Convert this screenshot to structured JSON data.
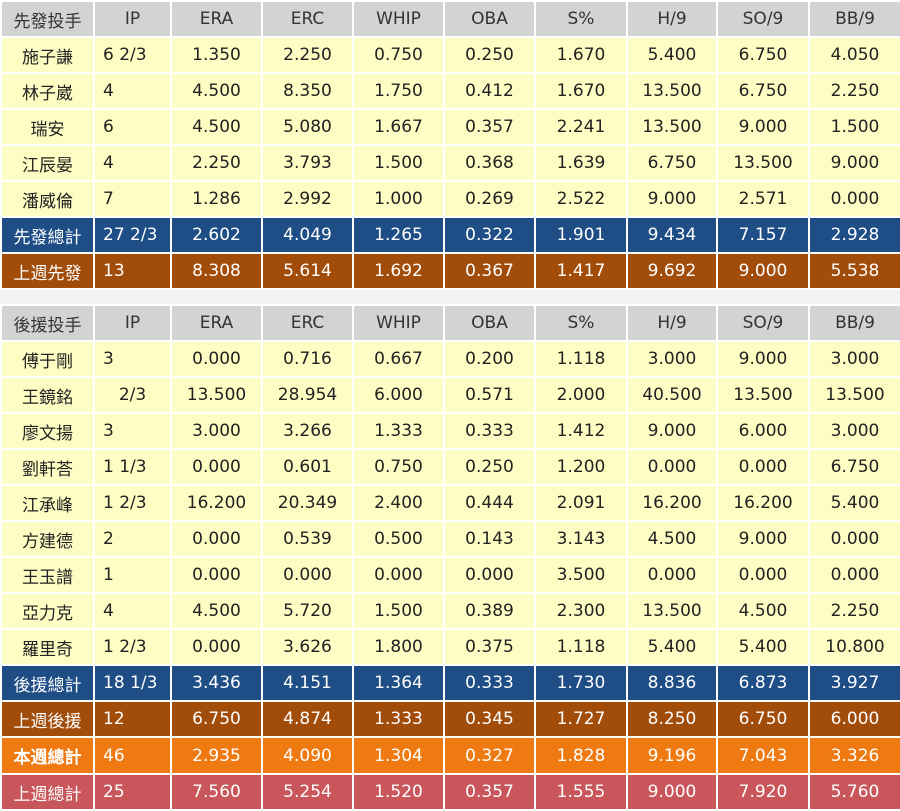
{
  "headers": [
    "IP",
    "ERA",
    "ERC",
    "WHIP",
    "OBA",
    "S%",
    "H/9",
    "SO/9",
    "BB/9"
  ],
  "starters": {
    "title": "先發投手",
    "rows": [
      {
        "name": "施子謙",
        "ip": "6 2/3",
        "era": "1.350",
        "erc": "2.250",
        "whip": "0.750",
        "oba": "0.250",
        "s": "1.670",
        "h9": "5.400",
        "so9": "6.750",
        "bb9": "4.050"
      },
      {
        "name": "林子崴",
        "ip": "4",
        "era": "4.500",
        "erc": "8.350",
        "whip": "1.750",
        "oba": "0.412",
        "s": "1.670",
        "h9": "13.500",
        "so9": "6.750",
        "bb9": "2.250"
      },
      {
        "name": "瑞安",
        "ip": "6",
        "era": "4.500",
        "erc": "5.080",
        "whip": "1.667",
        "oba": "0.357",
        "s": "2.241",
        "h9": "13.500",
        "so9": "9.000",
        "bb9": "1.500"
      },
      {
        "name": "江辰晏",
        "ip": "4",
        "era": "2.250",
        "erc": "3.793",
        "whip": "1.500",
        "oba": "0.368",
        "s": "1.639",
        "h9": "6.750",
        "so9": "13.500",
        "bb9": "9.000"
      },
      {
        "name": "潘威倫",
        "ip": "7",
        "era": "1.286",
        "erc": "2.992",
        "whip": "1.000",
        "oba": "0.269",
        "s": "2.522",
        "h9": "9.000",
        "so9": "2.571",
        "bb9": "0.000"
      }
    ],
    "total": {
      "name": "先發總計",
      "ip": "27 2/3",
      "era": "2.602",
      "erc": "4.049",
      "whip": "1.265",
      "oba": "0.322",
      "s": "1.901",
      "h9": "9.434",
      "so9": "7.157",
      "bb9": "2.928"
    },
    "last_week": {
      "name": "上週先發",
      "ip": "13",
      "era": "8.308",
      "erc": "5.614",
      "whip": "1.692",
      "oba": "0.367",
      "s": "1.417",
      "h9": "9.692",
      "so9": "9.000",
      "bb9": "5.538"
    }
  },
  "relievers": {
    "title": "後援投手",
    "rows": [
      {
        "name": "傅于剛",
        "ip": "3",
        "era": "0.000",
        "erc": "0.716",
        "whip": "0.667",
        "oba": "0.200",
        "s": "1.118",
        "h9": "3.000",
        "so9": "9.000",
        "bb9": "3.000"
      },
      {
        "name": "王鏡銘",
        "ip": "2/3",
        "era": "13.500",
        "erc": "28.954",
        "whip": "6.000",
        "oba": "0.571",
        "s": "2.000",
        "h9": "40.500",
        "so9": "13.500",
        "bb9": "13.500"
      },
      {
        "name": "廖文揚",
        "ip": "3",
        "era": "3.000",
        "erc": "3.266",
        "whip": "1.333",
        "oba": "0.333",
        "s": "1.412",
        "h9": "9.000",
        "so9": "6.000",
        "bb9": "3.000"
      },
      {
        "name": "劉軒荅",
        "ip": "1 1/3",
        "era": "0.000",
        "erc": "0.601",
        "whip": "0.750",
        "oba": "0.250",
        "s": "1.200",
        "h9": "0.000",
        "so9": "0.000",
        "bb9": "6.750"
      },
      {
        "name": "江承峰",
        "ip": "1 2/3",
        "era": "16.200",
        "erc": "20.349",
        "whip": "2.400",
        "oba": "0.444",
        "s": "2.091",
        "h9": "16.200",
        "so9": "16.200",
        "bb9": "5.400"
      },
      {
        "name": "方建德",
        "ip": "2",
        "era": "0.000",
        "erc": "0.539",
        "whip": "0.500",
        "oba": "0.143",
        "s": "3.143",
        "h9": "4.500",
        "so9": "9.000",
        "bb9": "0.000"
      },
      {
        "name": "王玉譜",
        "ip": "1",
        "era": "0.000",
        "erc": "0.000",
        "whip": "0.000",
        "oba": "0.000",
        "s": "3.500",
        "h9": "0.000",
        "so9": "0.000",
        "bb9": "0.000"
      },
      {
        "name": "亞力克",
        "ip": "4",
        "era": "4.500",
        "erc": "5.720",
        "whip": "1.500",
        "oba": "0.389",
        "s": "2.300",
        "h9": "13.500",
        "so9": "4.500",
        "bb9": "2.250"
      },
      {
        "name": "羅里奇",
        "ip": "1 2/3",
        "era": "0.000",
        "erc": "3.626",
        "whip": "1.800",
        "oba": "0.375",
        "s": "1.118",
        "h9": "5.400",
        "so9": "5.400",
        "bb9": "10.800"
      }
    ],
    "total": {
      "name": "後援總計",
      "ip": "18 1/3",
      "era": "3.436",
      "erc": "4.151",
      "whip": "1.364",
      "oba": "0.333",
      "s": "1.730",
      "h9": "8.836",
      "so9": "6.873",
      "bb9": "3.927"
    },
    "last_week": {
      "name": "上週後援",
      "ip": "12",
      "era": "6.750",
      "erc": "4.874",
      "whip": "1.333",
      "oba": "0.345",
      "s": "1.727",
      "h9": "8.250",
      "so9": "6.750",
      "bb9": "6.000"
    }
  },
  "week_total": {
    "name": "本週總計",
    "ip": "46",
    "era": "2.935",
    "erc": "4.090",
    "whip": "1.304",
    "oba": "0.327",
    "s": "1.828",
    "h9": "9.196",
    "so9": "7.043",
    "bb9": "3.326"
  },
  "last_week_total": {
    "name": "上週總計",
    "ip": "25",
    "era": "7.560",
    "erc": "5.254",
    "whip": "1.520",
    "oba": "0.357",
    "s": "1.555",
    "h9": "9.000",
    "so9": "7.920",
    "bb9": "5.760"
  },
  "colors": {
    "header_bg": "#d3d3d3",
    "row_bg": "#fefdc4",
    "total_blue": "#1f4e86",
    "last_week_brown": "#a24c0a",
    "week_total_orange": "#ef7a11",
    "last_week_total_red": "#c9565a"
  }
}
